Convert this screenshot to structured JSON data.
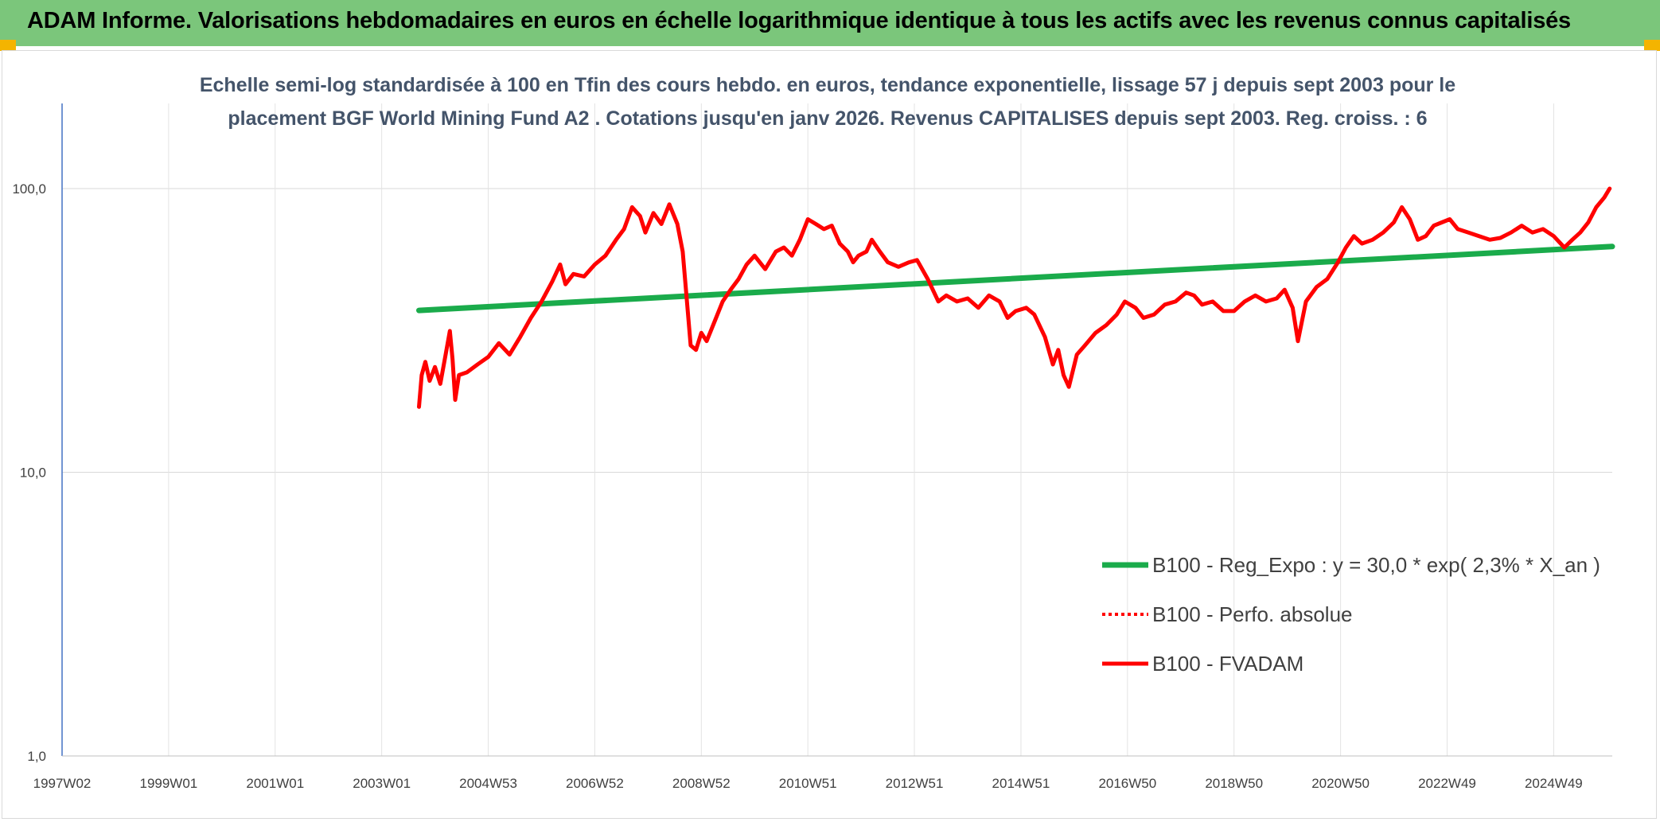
{
  "header": {
    "title": "ADAM Informe. Valorisations hebdomadaires en euros en échelle logarithmique identique à tous les actifs avec les revenus connus capitalisés"
  },
  "colors": {
    "header_bg": "#7bc67b",
    "corner": "#f4b400",
    "trend": "#1aab4b",
    "series": "#ff0000",
    "grid": "#d9d9d9"
  },
  "chart_data": {
    "type": "line",
    "title_lines": [
      "Echelle semi-log standardisée à 100 en Tfin des cours hebdo. en euros, tendance exponentielle, lissage 57 j depuis sept 2003 pour le",
      "placement BGF World Mining Fund A2 . Cotations jusqu'en janv 2026. Revenus CAPITALISES depuis sept 2003. Reg. croiss. : 6"
    ],
    "y_scale": "log",
    "ylim": [
      1,
      100
    ],
    "y_ticks": [
      "1,0",
      "10,0",
      "100,0"
    ],
    "x_range": [
      1997.0,
      2026.1
    ],
    "x_ticks": [
      {
        "label": "1997W02",
        "x": 1997.0
      },
      {
        "label": "1999W01",
        "x": 1999.0
      },
      {
        "label": "2001W01",
        "x": 2001.0
      },
      {
        "label": "2003W01",
        "x": 2003.0
      },
      {
        "label": "2004W53",
        "x": 2005.0
      },
      {
        "label": "2006W52",
        "x": 2007.0
      },
      {
        "label": "2008W52",
        "x": 2009.0
      },
      {
        "label": "2010W51",
        "x": 2011.0
      },
      {
        "label": "2012W51",
        "x": 2013.0
      },
      {
        "label": "2014W51",
        "x": 2015.0
      },
      {
        "label": "2016W50",
        "x": 2017.0
      },
      {
        "label": "2018W50",
        "x": 2019.0
      },
      {
        "label": "2020W50",
        "x": 2021.0
      },
      {
        "label": "2022W49",
        "x": 2023.0
      },
      {
        "label": "2024W49",
        "x": 2025.0
      }
    ],
    "grid": true,
    "legend_position": "bottom-right",
    "series": [
      {
        "name": "B100 - Reg_Expo : y = 30,0 * exp( 2,3% *  X_an )",
        "style": "solid-green",
        "points": [
          [
            2003.7,
            37.2
          ],
          [
            2026.1,
            62.5
          ]
        ]
      },
      {
        "name": "B100 - Perfo. absolue",
        "style": "dotted-red",
        "points": []
      },
      {
        "name": "B100 - FVADAM",
        "style": "solid-red",
        "points": [
          [
            2003.7,
            17.0
          ],
          [
            2003.75,
            22.0
          ],
          [
            2003.82,
            24.5
          ],
          [
            2003.9,
            21.0
          ],
          [
            2004.0,
            23.5
          ],
          [
            2004.1,
            20.5
          ],
          [
            2004.2,
            26.0
          ],
          [
            2004.28,
            31.5
          ],
          [
            2004.33,
            25.0
          ],
          [
            2004.38,
            18.0
          ],
          [
            2004.45,
            22.0
          ],
          [
            2004.6,
            22.5
          ],
          [
            2004.8,
            24.0
          ],
          [
            2005.0,
            25.5
          ],
          [
            2005.2,
            28.5
          ],
          [
            2005.4,
            26.0
          ],
          [
            2005.6,
            30.0
          ],
          [
            2005.8,
            35.0
          ],
          [
            2006.0,
            40.0
          ],
          [
            2006.2,
            47.0
          ],
          [
            2006.35,
            54.0
          ],
          [
            2006.45,
            46.0
          ],
          [
            2006.6,
            50.0
          ],
          [
            2006.8,
            49.0
          ],
          [
            2007.0,
            54.0
          ],
          [
            2007.2,
            58.0
          ],
          [
            2007.4,
            66.0
          ],
          [
            2007.55,
            72.0
          ],
          [
            2007.7,
            86.0
          ],
          [
            2007.85,
            80.0
          ],
          [
            2007.95,
            70.0
          ],
          [
            2008.1,
            82.0
          ],
          [
            2008.25,
            75.0
          ],
          [
            2008.4,
            88.0
          ],
          [
            2008.55,
            75.0
          ],
          [
            2008.65,
            60.0
          ],
          [
            2008.72,
            42.0
          ],
          [
            2008.8,
            28.0
          ],
          [
            2008.9,
            27.0
          ],
          [
            2009.0,
            31.0
          ],
          [
            2009.1,
            29.0
          ],
          [
            2009.25,
            34.0
          ],
          [
            2009.4,
            40.0
          ],
          [
            2009.55,
            44.0
          ],
          [
            2009.7,
            48.0
          ],
          [
            2009.85,
            54.0
          ],
          [
            2010.0,
            58.0
          ],
          [
            2010.2,
            52.0
          ],
          [
            2010.4,
            60.0
          ],
          [
            2010.55,
            62.0
          ],
          [
            2010.7,
            58.0
          ],
          [
            2010.85,
            66.0
          ],
          [
            2011.0,
            78.0
          ],
          [
            2011.15,
            75.0
          ],
          [
            2011.3,
            72.0
          ],
          [
            2011.45,
            74.0
          ],
          [
            2011.6,
            64.0
          ],
          [
            2011.75,
            60.0
          ],
          [
            2011.85,
            55.0
          ],
          [
            2011.95,
            58.0
          ],
          [
            2012.1,
            60.0
          ],
          [
            2012.2,
            66.0
          ],
          [
            2012.35,
            60.0
          ],
          [
            2012.5,
            55.0
          ],
          [
            2012.7,
            53.0
          ],
          [
            2012.9,
            55.0
          ],
          [
            2013.05,
            56.0
          ],
          [
            2013.25,
            48.0
          ],
          [
            2013.45,
            40.0
          ],
          [
            2013.6,
            42.0
          ],
          [
            2013.8,
            40.0
          ],
          [
            2014.0,
            41.0
          ],
          [
            2014.2,
            38.0
          ],
          [
            2014.4,
            42.0
          ],
          [
            2014.6,
            40.0
          ],
          [
            2014.75,
            35.0
          ],
          [
            2014.9,
            37.0
          ],
          [
            2015.1,
            38.0
          ],
          [
            2015.25,
            36.0
          ],
          [
            2015.45,
            30.0
          ],
          [
            2015.6,
            24.0
          ],
          [
            2015.7,
            27.0
          ],
          [
            2015.8,
            22.0
          ],
          [
            2015.9,
            20.0
          ],
          [
            2016.05,
            26.0
          ],
          [
            2016.2,
            28.0
          ],
          [
            2016.4,
            31.0
          ],
          [
            2016.6,
            33.0
          ],
          [
            2016.8,
            36.0
          ],
          [
            2016.95,
            40.0
          ],
          [
            2017.15,
            38.0
          ],
          [
            2017.3,
            35.0
          ],
          [
            2017.5,
            36.0
          ],
          [
            2017.7,
            39.0
          ],
          [
            2017.9,
            40.0
          ],
          [
            2018.1,
            43.0
          ],
          [
            2018.25,
            42.0
          ],
          [
            2018.4,
            39.0
          ],
          [
            2018.6,
            40.0
          ],
          [
            2018.8,
            37.0
          ],
          [
            2019.0,
            37.0
          ],
          [
            2019.2,
            40.0
          ],
          [
            2019.4,
            42.0
          ],
          [
            2019.6,
            40.0
          ],
          [
            2019.8,
            41.0
          ],
          [
            2019.95,
            44.0
          ],
          [
            2020.1,
            38.0
          ],
          [
            2020.2,
            29.0
          ],
          [
            2020.35,
            40.0
          ],
          [
            2020.55,
            45.0
          ],
          [
            2020.75,
            48.0
          ],
          [
            2020.95,
            55.0
          ],
          [
            2021.1,
            62.0
          ],
          [
            2021.25,
            68.0
          ],
          [
            2021.4,
            64.0
          ],
          [
            2021.6,
            66.0
          ],
          [
            2021.8,
            70.0
          ],
          [
            2022.0,
            76.0
          ],
          [
            2022.15,
            86.0
          ],
          [
            2022.3,
            78.0
          ],
          [
            2022.45,
            66.0
          ],
          [
            2022.6,
            68.0
          ],
          [
            2022.75,
            74.0
          ],
          [
            2022.9,
            76.0
          ],
          [
            2023.05,
            78.0
          ],
          [
            2023.2,
            72.0
          ],
          [
            2023.4,
            70.0
          ],
          [
            2023.6,
            68.0
          ],
          [
            2023.8,
            66.0
          ],
          [
            2024.0,
            67.0
          ],
          [
            2024.2,
            70.0
          ],
          [
            2024.4,
            74.0
          ],
          [
            2024.6,
            70.0
          ],
          [
            2024.8,
            72.0
          ],
          [
            2025.0,
            68.0
          ],
          [
            2025.2,
            62.0
          ],
          [
            2025.35,
            66.0
          ],
          [
            2025.5,
            70.0
          ],
          [
            2025.65,
            76.0
          ],
          [
            2025.8,
            86.0
          ],
          [
            2025.95,
            93.0
          ],
          [
            2026.05,
            100.0
          ]
        ]
      }
    ]
  }
}
